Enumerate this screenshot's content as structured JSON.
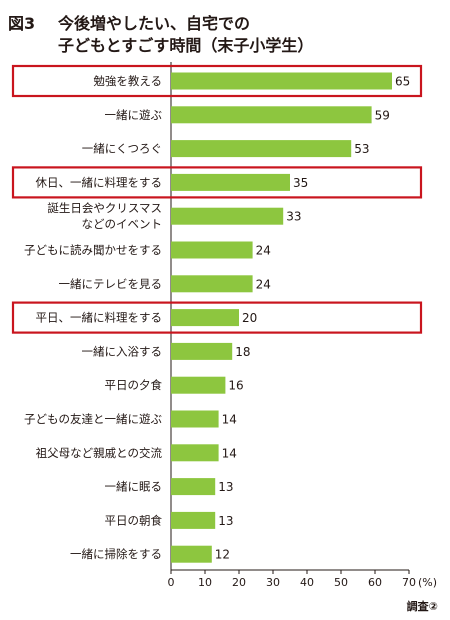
{
  "figure": {
    "label": "図3",
    "title_lines": [
      "今後増やしたい、自宅での",
      "子どもとすごす時間（末子小学生）"
    ],
    "source": "調査②"
  },
  "colors": {
    "bar": "#8dc63f",
    "highlight": "#c9151e",
    "axis": "#231815",
    "grid": "#bfbfbf"
  },
  "chart_data": {
    "type": "bar",
    "orientation": "horizontal",
    "title": "今後増やしたい、自宅での子どもとすごす時間（末子小学生）",
    "categories": [
      [
        "勉強を教える"
      ],
      [
        "一緒に遊ぶ"
      ],
      [
        "一緒にくつろぐ"
      ],
      [
        "休日、一緒に料理をする"
      ],
      [
        "誕生日会やクリスマス",
        "などのイベント"
      ],
      [
        "子どもに読み聞かせをする"
      ],
      [
        "一緒にテレビを見る"
      ],
      [
        "平日、一緒に料理をする"
      ],
      [
        "一緒に入浴する"
      ],
      [
        "平日の夕食"
      ],
      [
        "子どもの友達と一緒に遊ぶ"
      ],
      [
        "祖父母など親戚との交流"
      ],
      [
        "一緒に眠る"
      ],
      [
        "平日の朝食"
      ],
      [
        "一緒に掃除をする"
      ]
    ],
    "values": [
      65,
      59,
      53,
      35,
      33,
      24,
      24,
      20,
      18,
      16,
      14,
      14,
      13,
      13,
      12
    ],
    "highlighted": [
      0,
      3,
      7
    ],
    "xlim": [
      0,
      70
    ],
    "xticks": [
      0,
      10,
      20,
      30,
      40,
      50,
      60,
      70
    ],
    "xunit": "(%)",
    "grid": false
  }
}
